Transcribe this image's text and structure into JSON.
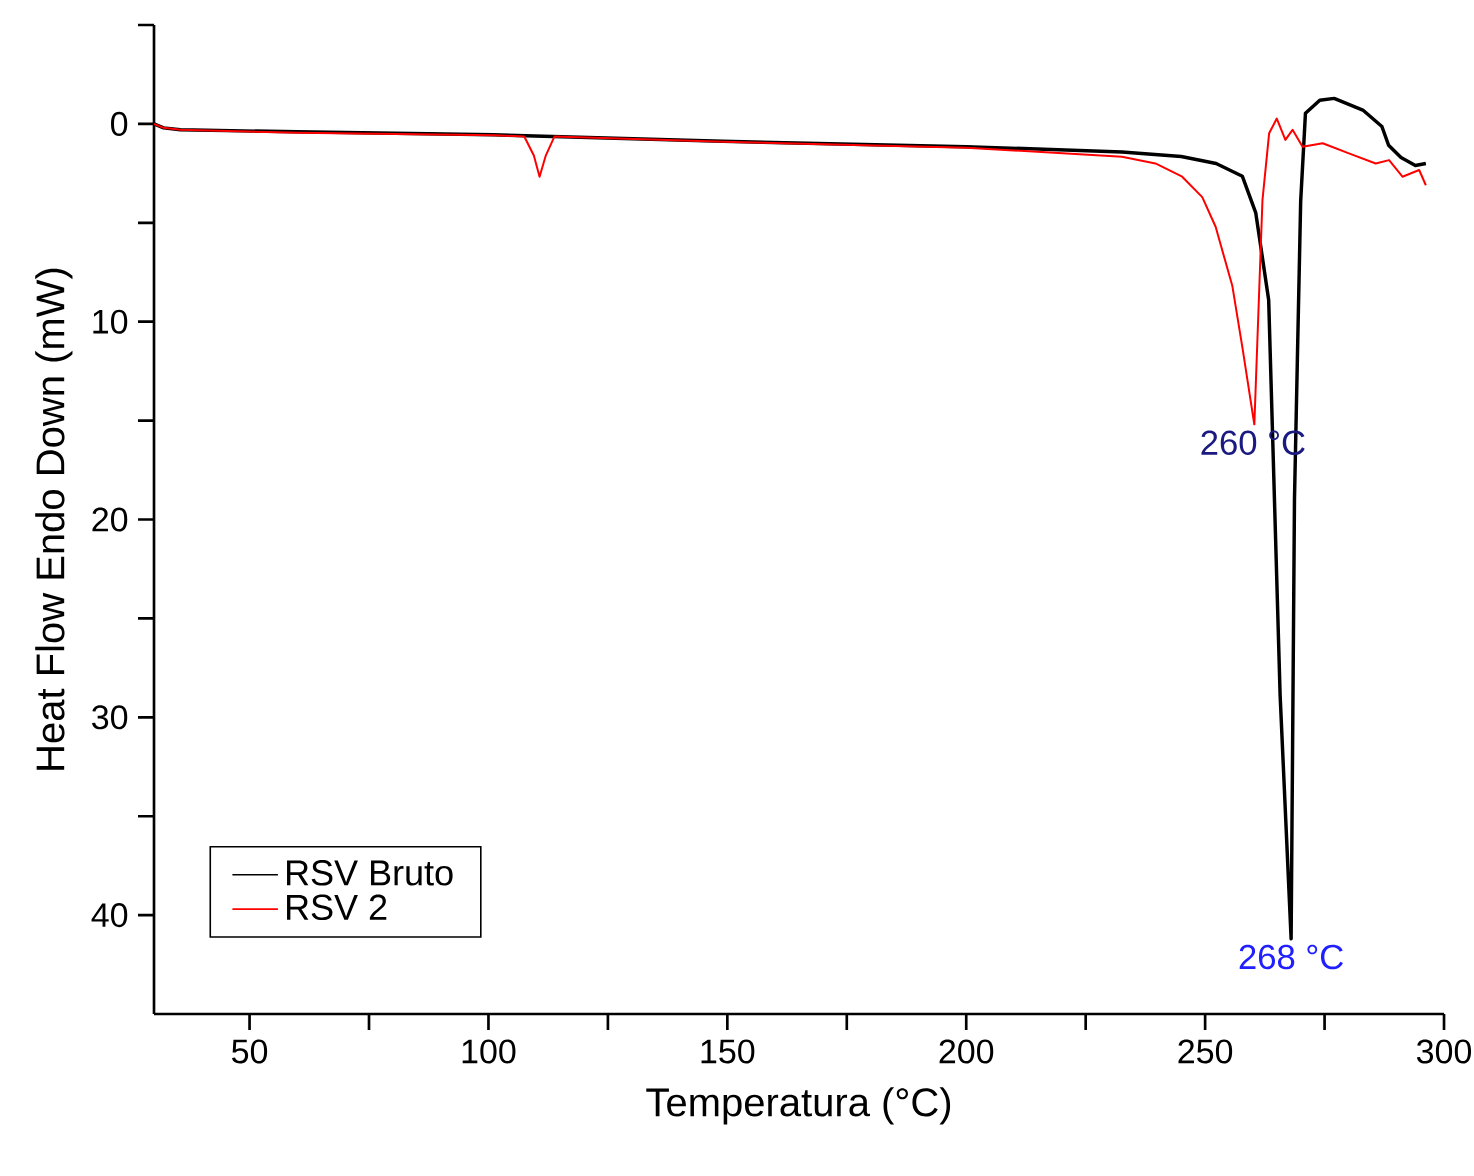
{
  "chart_data": {
    "type": "line",
    "xlabel": "Temperatura (°C)",
    "ylabel": "Heat Flow Endo Down (mW)",
    "xlim": [
      30,
      300
    ],
    "ylim": [
      45,
      -5
    ],
    "xticks": [
      50,
      {
        "value": 75,
        "label": null
      },
      100,
      {
        "value": 125,
        "label": null
      },
      150,
      {
        "value": 175,
        "label": null
      },
      200,
      {
        "value": 225,
        "label": null
      },
      250,
      {
        "value": 275,
        "label": null
      },
      300
    ],
    "yticks": [
      {
        "value": -5,
        "label": null
      },
      0,
      {
        "value": 5,
        "label": null
      },
      10,
      {
        "value": 15,
        "label": null
      },
      20,
      {
        "value": 25,
        "label": null
      },
      30,
      {
        "value": 35,
        "label": null
      },
      40
    ],
    "grid": false,
    "legend": "bottom left",
    "marker": "none",
    "line_style": "solid",
    "series": [
      {
        "name": "RSV Bruto",
        "color": "#000000",
        "x": [
          30,
          32,
          35.5,
          60,
          101,
          149,
          200,
          232.6,
          245,
          252.3,
          257.8,
          260.6,
          263.3,
          265.7,
          268,
          268.7,
          269.3,
          270,
          271,
          274,
          277,
          283,
          287,
          288.4,
          291,
          294,
          296.2
        ],
        "values": [
          0,
          0.2,
          0.3,
          0.4,
          0.55,
          0.88,
          1.15,
          1.42,
          1.65,
          2.0,
          2.65,
          4.5,
          8.9,
          28.9,
          41.2,
          19,
          12,
          3.9,
          -0.54,
          -1.2,
          -1.29,
          -0.7,
          0.13,
          1.08,
          1.7,
          2.1,
          2.0
        ]
      },
      {
        "name": "RSV 2",
        "color": "#ff0000",
        "x": [
          30,
          32,
          35.5,
          60,
          101.3,
          107.5,
          109.5,
          110.7,
          112,
          113.8,
          149,
          200,
          232.6,
          239.6,
          245.2,
          249.4,
          252.2,
          255.7,
          257.8,
          260.3,
          262,
          263.4,
          265,
          266.8,
          268.3,
          270.4,
          274.6,
          280.1,
          285.7,
          288.5,
          291.3,
          294.8,
          296.2
        ],
        "values": [
          0,
          0.2,
          0.3,
          0.45,
          0.57,
          0.64,
          1.6,
          2.67,
          1.6,
          0.64,
          0.9,
          1.2,
          1.66,
          2.0,
          2.67,
          3.7,
          5.2,
          8.2,
          11.3,
          15.2,
          3.85,
          0.47,
          -0.27,
          0.81,
          0.3,
          1.15,
          0.98,
          1.49,
          2.0,
          1.83,
          2.67,
          2.33,
          3.1
        ]
      }
    ],
    "annotations": [
      {
        "text": "260 °C",
        "x": 260,
        "y": 15.2
      },
      {
        "text": "268 °C",
        "x": 268,
        "y": 41.2
      }
    ]
  }
}
